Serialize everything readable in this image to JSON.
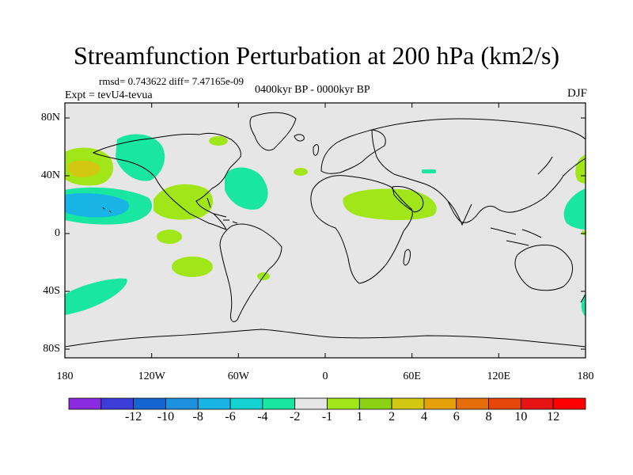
{
  "title": "Streamfunction Perturbation at 200 hPa (km2/s)",
  "stats": "rmsd= 0.743622 diff= 7.47165e-09",
  "experiment": "Expt = tevU4-tevua",
  "period": "0400kyr BP - 0000kyr BP",
  "season": "DJF",
  "map": {
    "background": "#e6e6e6",
    "lat_ticks": [
      "80N",
      "40N",
      "0",
      "40S",
      "80S"
    ],
    "lon_ticks": [
      "180",
      "120W",
      "60W",
      "0",
      "60E",
      "120E",
      "180"
    ]
  },
  "colorbar": {
    "colors": [
      "#8a2be2",
      "#3c3cd9",
      "#1464d2",
      "#1e90e0",
      "#19b4e6",
      "#14d2d2",
      "#19e6a0",
      "#e6e6e6",
      "#a0e619",
      "#8cd214",
      "#d2c814",
      "#e6a00a",
      "#e66e0a",
      "#e6460a",
      "#e61414",
      "#ff0000"
    ],
    "labels": [
      "-12",
      "-10",
      "-8",
      "-6",
      "-4",
      "-2",
      "-1",
      "1",
      "2",
      "4",
      "6",
      "8",
      "10",
      "12"
    ]
  }
}
